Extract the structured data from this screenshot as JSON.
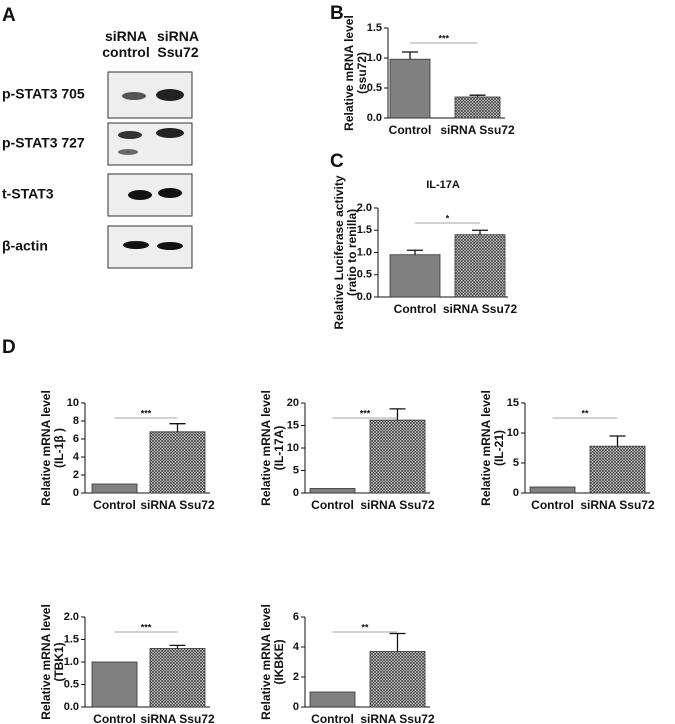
{
  "panels": {
    "a": "A",
    "b": "B",
    "c": "C",
    "d": "D"
  },
  "blot": {
    "columns": [
      "siRNA control",
      "siRNA Ssu72"
    ],
    "rows": [
      "p-STAT3 705",
      "p-STAT3 727",
      "t-STAT3",
      "β-actin"
    ]
  },
  "chart_data": [
    {
      "type": "bar",
      "ylabel": [
        "Relative mRNA level",
        "(ssu72)"
      ],
      "categories": [
        "Control",
        "siRNA Ssu72"
      ],
      "values": [
        0.98,
        0.35
      ],
      "errors": [
        0.12,
        0.03
      ],
      "significance": "***",
      "ylim": [
        0,
        1.5
      ],
      "yticks": [
        {
          "value": 0,
          "label": "0.0"
        },
        0.5,
        {
          "value": 1,
          "label": "1.0"
        },
        1.5
      ]
    },
    {
      "type": "bar",
      "title": "IL-17A",
      "ylabel": [
        "Relative Luciferase activity",
        "(ratio to renilla)"
      ],
      "categories": [
        "Control",
        "siRNA Ssu72"
      ],
      "values": [
        0.95,
        1.4
      ],
      "errors": [
        0.1,
        0.1
      ],
      "significance": "*",
      "ylim": [
        0,
        2
      ],
      "yticks": [
        {
          "value": 0,
          "label": "0.0"
        },
        0.5,
        {
          "value": 1,
          "label": "1.0"
        },
        1.5,
        {
          "value": 2,
          "label": "2.0"
        }
      ]
    },
    {
      "type": "bar",
      "ylabel": [
        "Relative mRNA level",
        "(IL-1β )"
      ],
      "categories": [
        "Control",
        "siRNA Ssu72"
      ],
      "values": [
        1,
        6.8
      ],
      "errors": [
        null,
        0.9
      ],
      "significance": "***",
      "ylim": [
        0,
        10
      ],
      "yticks": [
        0,
        2,
        4,
        6,
        8,
        10
      ]
    },
    {
      "type": "bar",
      "ylabel": [
        "Relative mRNA level",
        "(IL-17A)"
      ],
      "categories": [
        "Control",
        "siRNA Ssu72"
      ],
      "values": [
        1,
        16.2
      ],
      "errors": [
        null,
        2.5
      ],
      "significance": "***",
      "ylim": [
        0,
        20
      ],
      "yticks": [
        0,
        5,
        10,
        15,
        20
      ]
    },
    {
      "type": "bar",
      "ylabel": [
        "Relative mRNA level",
        "(IL-21)"
      ],
      "categories": [
        "Control",
        "siRNA Ssu72"
      ],
      "values": [
        1,
        7.8
      ],
      "errors": [
        null,
        1.7
      ],
      "significance": "**",
      "ylim": [
        0,
        15
      ],
      "yticks": [
        0,
        5,
        10,
        15
      ]
    },
    {
      "type": "bar",
      "ylabel": [
        "Relative mRNA level",
        "(TBK1)"
      ],
      "categories": [
        "Control",
        "siRNA Ssu72"
      ],
      "values": [
        1,
        1.3
      ],
      "errors": [
        null,
        0.07
      ],
      "significance": "***",
      "ylim": [
        0,
        2
      ],
      "yticks": [
        {
          "value": 0,
          "label": "0.0"
        },
        0.5,
        {
          "value": 1,
          "label": "1.0"
        },
        1.5,
        {
          "value": 2,
          "label": "2.0"
        }
      ]
    },
    {
      "type": "bar",
      "ylabel": [
        "Relative mRNA level",
        "(IKBKE)"
      ],
      "categories": [
        "Control",
        "siRNA Ssu72"
      ],
      "values": [
        1,
        3.7
      ],
      "errors": [
        null,
        1.2
      ],
      "significance": "**",
      "ylim": [
        0,
        6
      ],
      "yticks": [
        0,
        2,
        4,
        6
      ]
    }
  ]
}
